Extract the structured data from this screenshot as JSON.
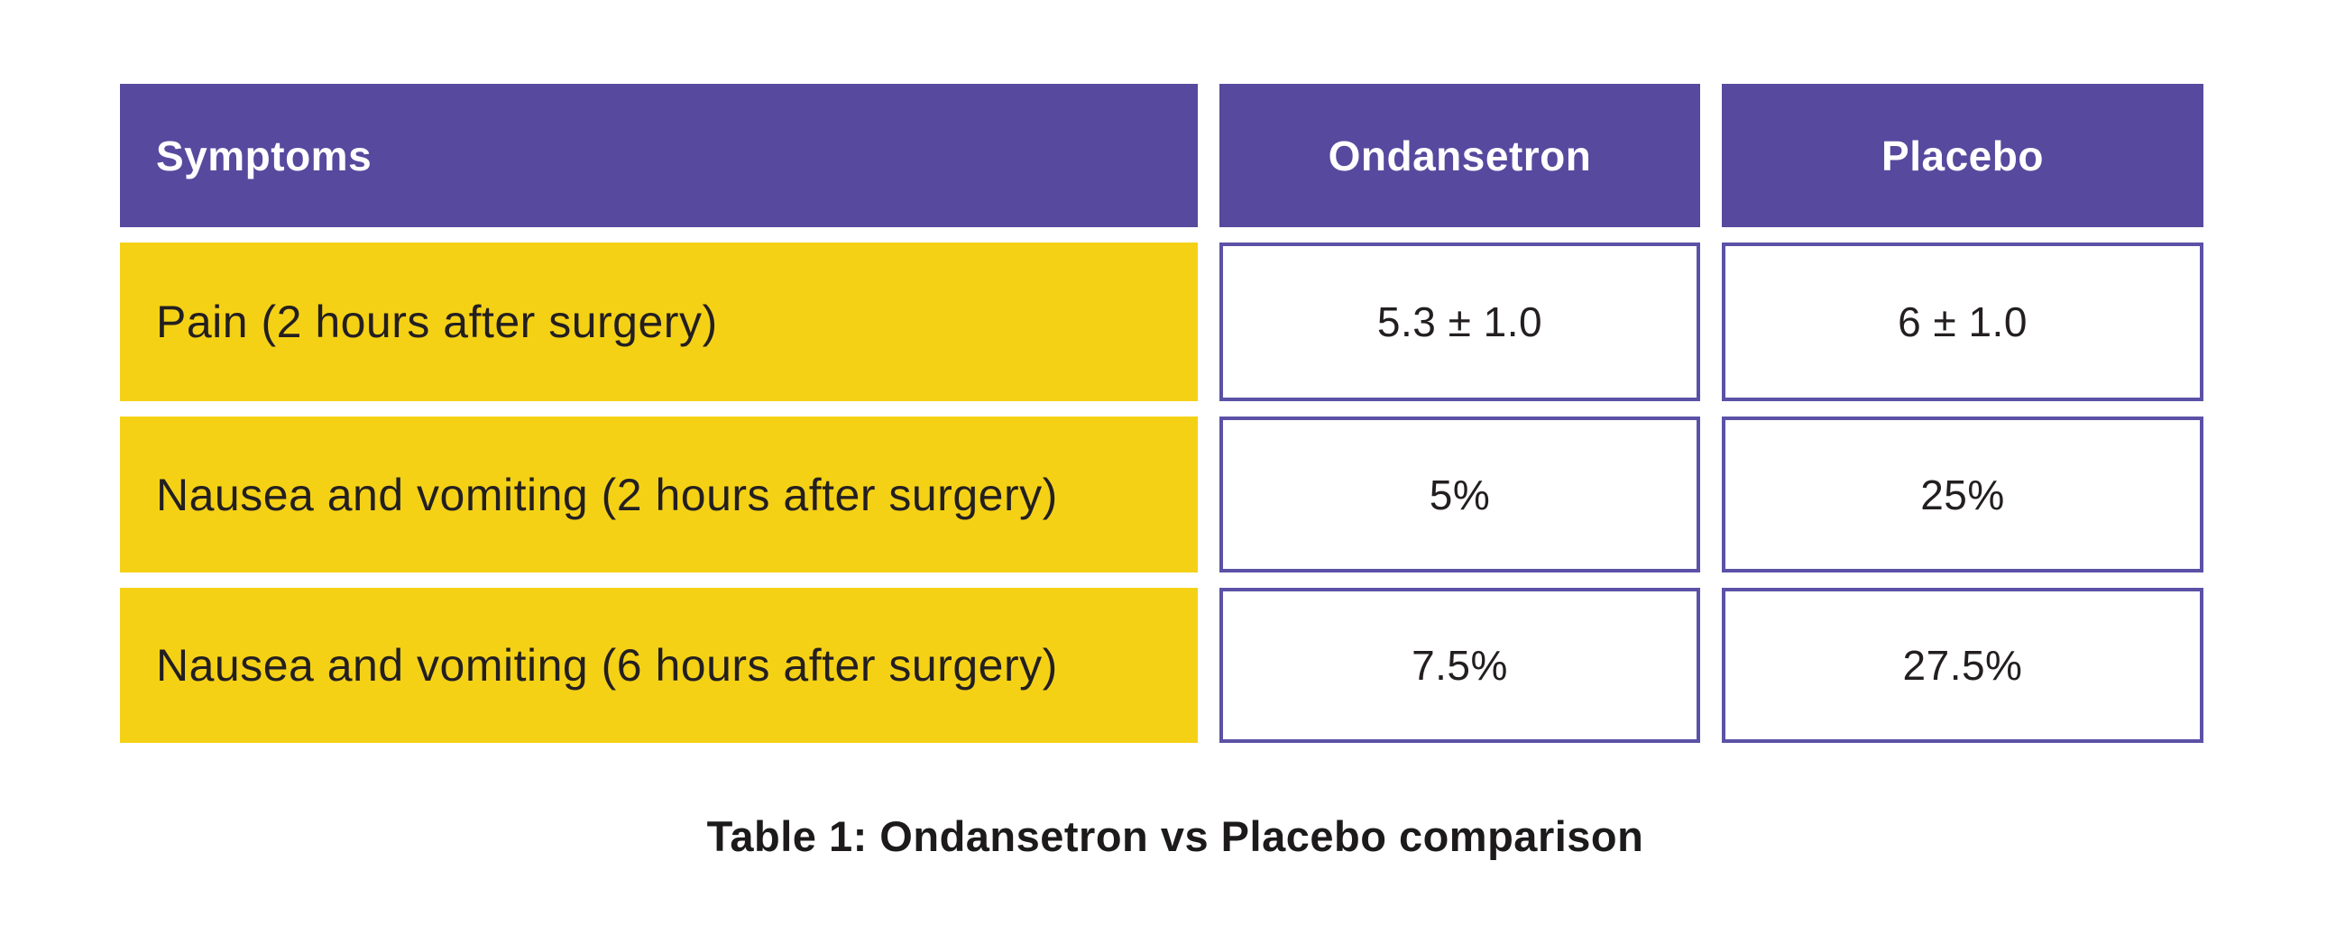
{
  "table": {
    "columns": [
      "Symptoms",
      "Ondansetron",
      "Placebo"
    ],
    "rows": [
      {
        "symptom": "Pain (2 hours after surgery)",
        "ondansetron": "5.3 ± 1.0",
        "placebo": "6 ± 1.0"
      },
      {
        "symptom": "Nausea and vomiting (2 hours after surgery)",
        "ondansetron": "5%",
        "placebo": "25%"
      },
      {
        "symptom": "Nausea and vomiting (6 hours after surgery)",
        "ondansetron": "7.5%",
        "placebo": "27.5%"
      }
    ]
  },
  "caption": "Table 1: Ondansetron vs Placebo comparison",
  "colors": {
    "header_bg": "#57499E",
    "row_label_bg": "#F5D116",
    "value_cell_border": "#5B51A6",
    "header_text": "#FFFFFF",
    "body_text": "#231F20"
  }
}
